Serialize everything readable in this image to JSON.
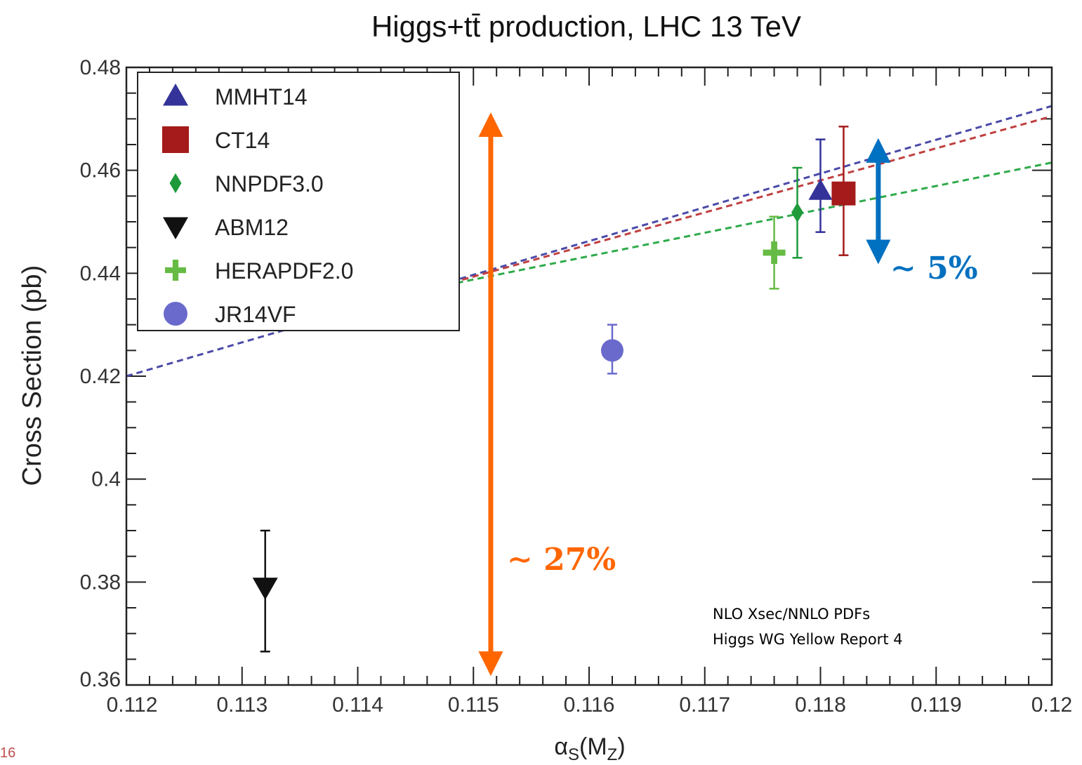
{
  "page_number": "16",
  "chart_data": {
    "type": "scatter",
    "title": "Higgs+tt̄ production, LHC 13 TeV",
    "xlabel": "αS(MZ)",
    "ylabel": "Cross Section (pb)",
    "xlim": [
      0.112,
      0.12
    ],
    "ylim": [
      0.36,
      0.48
    ],
    "x_ticks": [
      0.112,
      0.113,
      0.114,
      0.115,
      0.116,
      0.117,
      0.118,
      0.119,
      0.12
    ],
    "x_tick_labels": [
      "0.112",
      "0.113",
      "0.114",
      "0.115",
      "0.116",
      "0.117",
      "0.118",
      "0.119",
      "0.12"
    ],
    "y_ticks": [
      0.36,
      0.38,
      0.4,
      0.42,
      0.44,
      0.46,
      0.48
    ],
    "y_tick_labels": [
      "0.36",
      "0.38",
      "0.4",
      "0.42",
      "0.44",
      "0.46",
      "0.48"
    ],
    "legend_position": "top-left",
    "series": [
      {
        "name": "MMHT14",
        "marker": "triangle-up",
        "color": "#33339a",
        "x": 0.118,
        "y": 0.456,
        "err_low": 0.448,
        "err_high": 0.466,
        "fit_line": {
          "color": "#4a4aa8",
          "points": [
            [
              0.112,
              0.42
            ],
            [
              0.12,
              0.4725
            ]
          ]
        }
      },
      {
        "name": "CT14",
        "marker": "square",
        "color": "#a51a1a",
        "x": 0.1182,
        "y": 0.4555,
        "err_low": 0.4435,
        "err_high": 0.4685,
        "fit_line": {
          "color": "#c04040",
          "points": [
            [
              0.1135,
              0.43
            ],
            [
              0.12,
              0.4705
            ]
          ]
        }
      },
      {
        "name": "NNPDF3.0",
        "marker": "diamond",
        "color": "#1e9a3a",
        "x": 0.1178,
        "y": 0.4518,
        "err_low": 0.443,
        "err_high": 0.4605,
        "fit_line": {
          "color": "#2eaa4a",
          "points": [
            [
              0.1145,
              0.4365
            ],
            [
              0.12,
              0.4615
            ]
          ]
        }
      },
      {
        "name": "ABM12",
        "marker": "triangle-down",
        "color": "#111111",
        "x": 0.1132,
        "y": 0.379,
        "err_low": 0.3665,
        "err_high": 0.39
      },
      {
        "name": "HERAPDF2.0",
        "marker": "plus",
        "color": "#66bb44",
        "x": 0.1176,
        "y": 0.444,
        "err_low": 0.437,
        "err_high": 0.451
      },
      {
        "name": "JR14VF",
        "marker": "circle",
        "color": "#6a6acc",
        "x": 0.1162,
        "y": 0.425,
        "err_low": 0.4205,
        "err_high": 0.43
      }
    ],
    "annotations": [
      {
        "text": "∼ 27%",
        "color": "#ff6600",
        "arrow_x": 0.11515,
        "arrow_y_from": 0.3625,
        "arrow_y_to": 0.4705
      },
      {
        "text": "∼ 5%",
        "color": "#0070c0",
        "arrow_x": 0.1185,
        "arrow_y_from": 0.4425,
        "arrow_y_to": 0.4655
      },
      {
        "text": "NLO Xsec/NNLO PDFs",
        "color": "#000000"
      },
      {
        "text": "Higgs WG Yellow Report 4",
        "color": "#000000"
      }
    ]
  }
}
